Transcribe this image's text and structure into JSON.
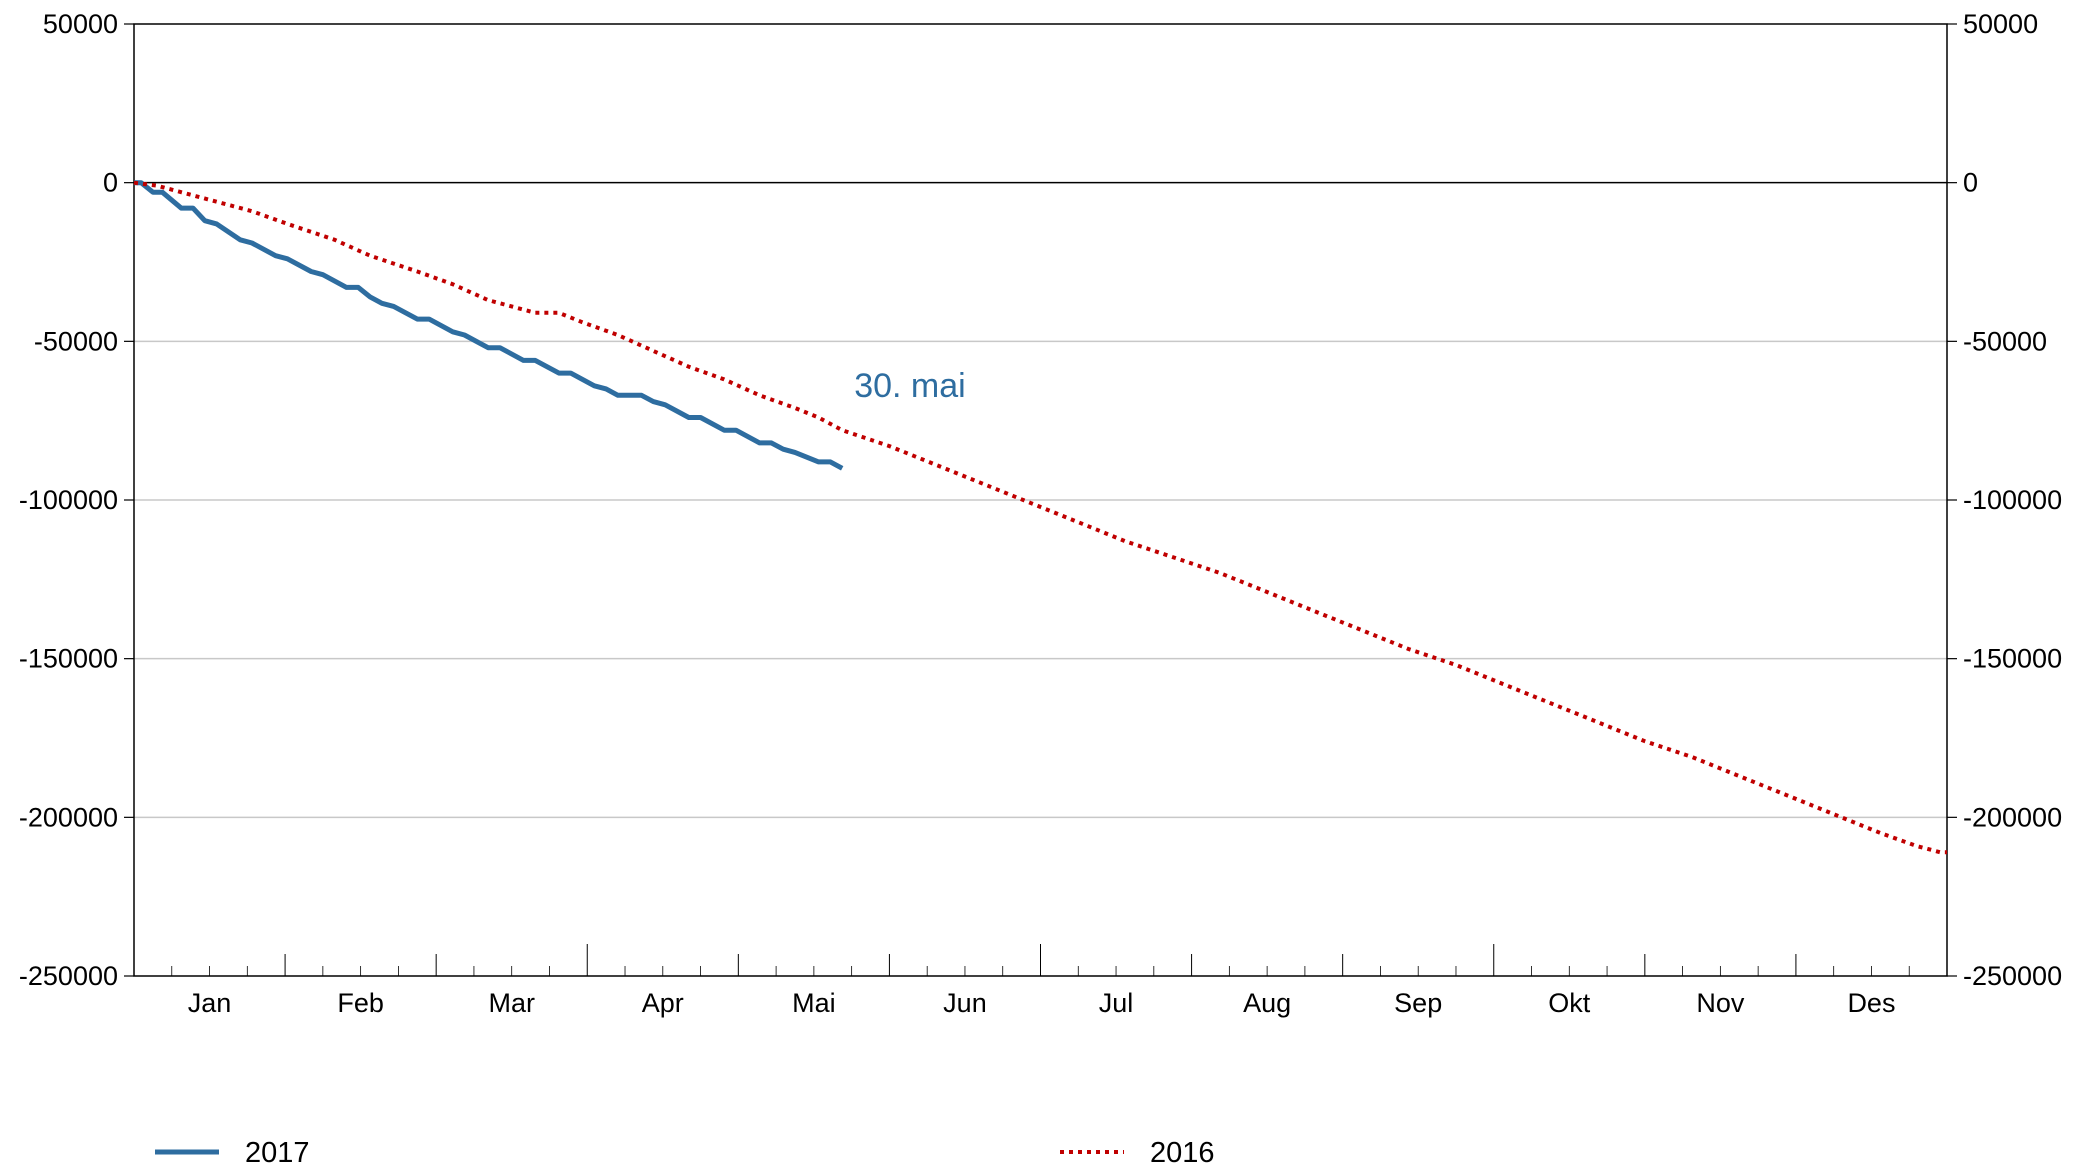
{
  "chart_data": {
    "type": "line",
    "x_categories": [
      "Jan",
      "Feb",
      "Mar",
      "Apr",
      "Mai",
      "Jun",
      "Jul",
      "Aug",
      "Sep",
      "Okt",
      "Nov",
      "Des"
    ],
    "ylim": [
      -250000,
      50000
    ],
    "yticks": [
      50000,
      0,
      -50000,
      -100000,
      -150000,
      -200000,
      -250000
    ],
    "ytick_labels": [
      "50000",
      "0",
      "-50000",
      "-100000",
      "-150000",
      "-200000",
      "-250000"
    ],
    "grid": true,
    "zero_line": true,
    "secondary_y_axis": true,
    "annotation": {
      "text": "30. mai",
      "color": "#2e6da0"
    },
    "legend": {
      "placement": "bottom"
    },
    "series": [
      {
        "name": "2017",
        "color": "#2e6da0",
        "style": "solid",
        "points": [
          [
            0,
            0
          ],
          [
            3,
            0
          ],
          [
            8,
            -3000
          ],
          [
            12,
            -3000
          ],
          [
            20,
            -8000
          ],
          [
            25,
            -8000
          ],
          [
            30,
            -12000
          ],
          [
            35,
            -13000
          ],
          [
            45,
            -18000
          ],
          [
            50,
            -19000
          ],
          [
            60,
            -23000
          ],
          [
            65,
            -24000
          ],
          [
            75,
            -28000
          ],
          [
            80,
            -29000
          ],
          [
            90,
            -33000
          ],
          [
            95,
            -33000
          ],
          [
            100,
            -36000
          ],
          [
            105,
            -38000
          ],
          [
            110,
            -39000
          ],
          [
            120,
            -43000
          ],
          [
            125,
            -43000
          ],
          [
            135,
            -47000
          ],
          [
            140,
            -48000
          ],
          [
            150,
            -52000
          ],
          [
            155,
            -52000
          ],
          [
            165,
            -56000
          ],
          [
            170,
            -56000
          ],
          [
            180,
            -60000
          ],
          [
            185,
            -60000
          ],
          [
            195,
            -64000
          ],
          [
            200,
            -65000
          ],
          [
            205,
            -67000
          ],
          [
            215,
            -67000
          ],
          [
            220,
            -69000
          ],
          [
            225,
            -70000
          ],
          [
            235,
            -74000
          ],
          [
            240,
            -74000
          ],
          [
            250,
            -78000
          ],
          [
            255,
            -78000
          ],
          [
            265,
            -82000
          ],
          [
            270,
            -82000
          ],
          [
            275,
            -84000
          ],
          [
            280,
            -85000
          ],
          [
            290,
            -88000
          ],
          [
            295,
            -88000
          ],
          [
            300,
            -90000
          ]
        ]
      },
      {
        "name": "2016",
        "color": "#c00000",
        "style": "dotted",
        "points": [
          [
            0,
            0
          ],
          [
            10,
            -1000
          ],
          [
            20,
            -3000
          ],
          [
            35,
            -6000
          ],
          [
            50,
            -9000
          ],
          [
            65,
            -13000
          ],
          [
            85,
            -18000
          ],
          [
            100,
            -23000
          ],
          [
            120,
            -28000
          ],
          [
            135,
            -32000
          ],
          [
            150,
            -37000
          ],
          [
            170,
            -41000
          ],
          [
            180,
            -41000
          ],
          [
            190,
            -44000
          ],
          [
            205,
            -48000
          ],
          [
            220,
            -53000
          ],
          [
            235,
            -58000
          ],
          [
            250,
            -62000
          ],
          [
            265,
            -67000
          ],
          [
            280,
            -71000
          ],
          [
            290,
            -74000
          ],
          [
            300,
            -78000
          ],
          [
            320,
            -83000
          ],
          [
            340,
            -89000
          ],
          [
            360,
            -95000
          ],
          [
            380,
            -101000
          ],
          [
            400,
            -107000
          ],
          [
            420,
            -113000
          ],
          [
            440,
            -118000
          ],
          [
            460,
            -123000
          ],
          [
            480,
            -129000
          ],
          [
            500,
            -135000
          ],
          [
            520,
            -141000
          ],
          [
            540,
            -147000
          ],
          [
            560,
            -152000
          ],
          [
            580,
            -158000
          ],
          [
            600,
            -164000
          ],
          [
            620,
            -170000
          ],
          [
            640,
            -176000
          ],
          [
            660,
            -181000
          ],
          [
            680,
            -187000
          ],
          [
            700,
            -193000
          ],
          [
            720,
            -199000
          ],
          [
            740,
            -205000
          ],
          [
            755,
            -209000
          ],
          [
            765,
            -211000
          ],
          [
            768,
            -211000
          ]
        ]
      }
    ]
  }
}
